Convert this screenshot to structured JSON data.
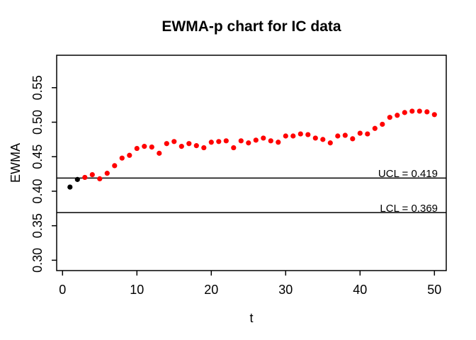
{
  "chart_data": {
    "type": "scatter",
    "title": "EWMA-p chart for IC data",
    "xlabel": "t",
    "ylabel": "EWMA",
    "x": [
      1,
      2,
      3,
      4,
      5,
      6,
      7,
      8,
      9,
      10,
      11,
      12,
      13,
      14,
      15,
      16,
      17,
      18,
      19,
      20,
      21,
      22,
      23,
      24,
      25,
      26,
      27,
      28,
      29,
      30,
      31,
      32,
      33,
      34,
      35,
      36,
      37,
      38,
      39,
      40,
      41,
      42,
      43,
      44,
      45,
      46,
      47,
      48,
      49,
      50
    ],
    "y": [
      0.406,
      0.417,
      0.42,
      0.424,
      0.418,
      0.426,
      0.437,
      0.448,
      0.452,
      0.462,
      0.465,
      0.464,
      0.455,
      0.469,
      0.472,
      0.465,
      0.469,
      0.466,
      0.463,
      0.471,
      0.472,
      0.473,
      0.463,
      0.473,
      0.47,
      0.474,
      0.477,
      0.473,
      0.471,
      0.48,
      0.48,
      0.483,
      0.482,
      0.477,
      0.475,
      0.47,
      0.48,
      0.481,
      0.476,
      0.484,
      0.483,
      0.491,
      0.497,
      0.507,
      0.51,
      0.514,
      0.516,
      0.516,
      0.515,
      0.511
    ],
    "point_color": "#ff0000",
    "black_points": [
      1,
      2
    ],
    "black_color": "#000000",
    "x_ticks": [
      0,
      10,
      20,
      30,
      40,
      50
    ],
    "x_tick_labels": [
      "0",
      "10",
      "20",
      "30",
      "40",
      "50"
    ],
    "y_ticks": [
      0.3,
      0.35,
      0.4,
      0.45,
      0.5,
      0.55
    ],
    "y_tick_labels": [
      "0.30",
      "0.35",
      "0.40",
      "0.45",
      "0.50",
      "0.55"
    ],
    "xlim": [
      -0.79,
      51.59
    ],
    "ylim": [
      0.285,
      0.597
    ],
    "grid": false,
    "legend": null,
    "annotations": {
      "ucl": {
        "label": "UCL = 0.419",
        "value": 0.419
      },
      "lcl": {
        "label": "LCL = 0.369",
        "value": 0.369
      }
    },
    "axis_color": "#000000",
    "background": "#ffffff"
  }
}
